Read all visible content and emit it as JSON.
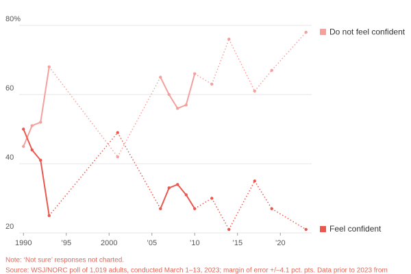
{
  "chart_data": {
    "type": "line",
    "x": [
      1990,
      1991,
      1992,
      1993,
      2001,
      2006,
      2007,
      2008,
      2009,
      2010,
      2012,
      2014,
      2017,
      2019,
      2023
    ],
    "series": [
      {
        "name": "Do not feel confident",
        "color": "#f4a09c",
        "values": [
          45,
          51,
          52,
          68,
          42,
          65,
          60,
          56,
          57,
          66,
          63,
          76,
          61,
          67,
          78
        ]
      },
      {
        "name": "Feel confident",
        "color": "#e9574f",
        "values": [
          50,
          44,
          41,
          25,
          49,
          27,
          33,
          34,
          31,
          27,
          30,
          21,
          35,
          27,
          21
        ]
      }
    ],
    "xlim": [
      1989.5,
      2023.5
    ],
    "xticks": [
      1990,
      {
        "value": 1995,
        "label": "’95"
      },
      2000,
      {
        "value": 2005,
        "label": "’05"
      },
      {
        "value": 2010,
        "label": "’10"
      },
      {
        "value": 2015,
        "label": "’15"
      },
      {
        "value": 2020,
        "label": "’20"
      }
    ],
    "ylim": [
      20,
      80
    ],
    "yticks": [
      20,
      40,
      60,
      {
        "value": 80,
        "label": "80%"
      }
    ],
    "grid": true,
    "note": "Note: ‘Not sure’ responses not charted.",
    "source": "Source: WSJ/NORC poll of 1,019 adults, conducted March 1–13, 2023; margin of error +/–4.1 pct. pts. Data prior to 2023 from"
  }
}
